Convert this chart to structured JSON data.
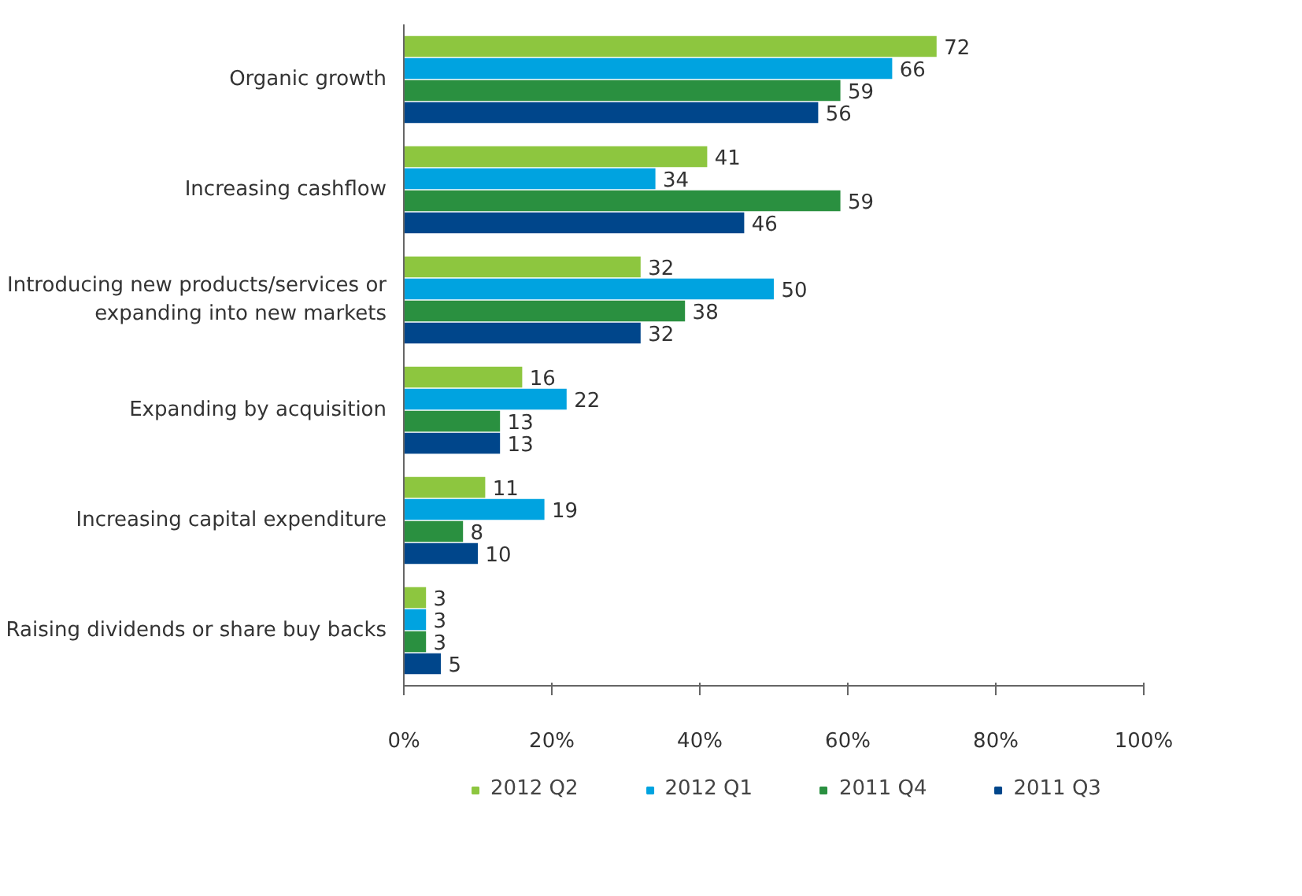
{
  "chart_data": {
    "type": "bar",
    "orientation": "horizontal",
    "categories": [
      "Organic growth",
      "Increasing cashflow",
      "Introducing new products/services or expanding into new markets",
      "Expanding by acquisition",
      "Increasing capital expenditure",
      "Raising dividends or share buy backs"
    ],
    "series": [
      {
        "name": "2012 Q2",
        "color": "#8dc63f",
        "values": [
          72,
          41,
          32,
          16,
          11,
          3
        ]
      },
      {
        "name": "2012 Q1",
        "color": "#00a3e0",
        "values": [
          66,
          34,
          50,
          22,
          19,
          3
        ]
      },
      {
        "name": "2011 Q4",
        "color": "#2a9040",
        "values": [
          59,
          59,
          38,
          13,
          8,
          3
        ]
      },
      {
        "name": "2011 Q3",
        "color": "#00468b",
        "values": [
          56,
          46,
          32,
          13,
          10,
          5
        ]
      }
    ],
    "xlim": [
      0,
      100
    ],
    "xticks": [
      {
        "value": 0,
        "label": "0%"
      },
      {
        "value": 20,
        "label": "20%"
      },
      {
        "value": 40,
        "label": "40%"
      },
      {
        "value": 60,
        "label": "60%"
      },
      {
        "value": 80,
        "label": "80%"
      },
      {
        "value": 100,
        "label": "100%"
      }
    ],
    "data_labels": true,
    "grid": false,
    "legend": "bottom"
  }
}
